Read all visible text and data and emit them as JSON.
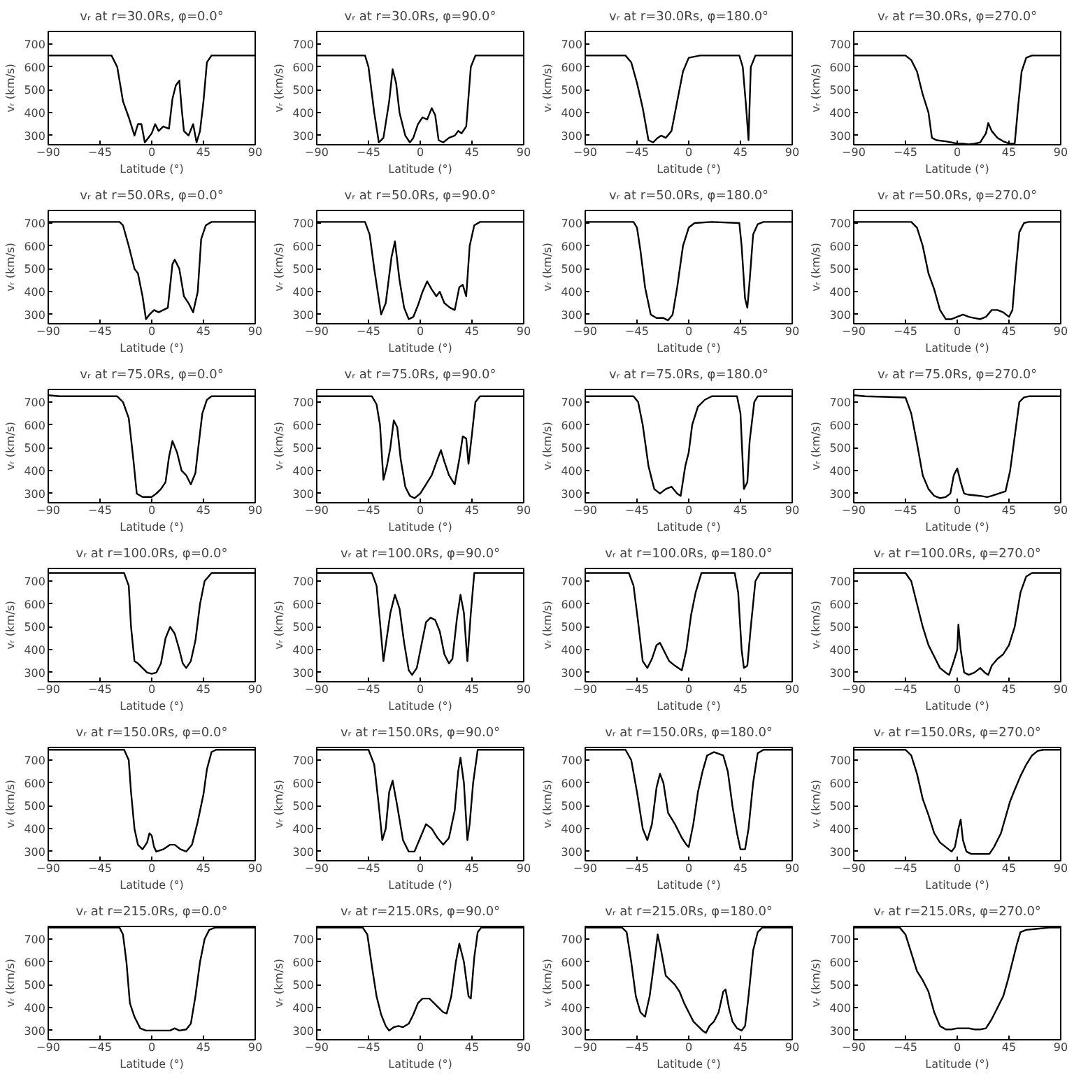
{
  "chart_data": [
    {
      "type": "line",
      "title": "vᵣ at r=30.0Rs, φ=0.0°",
      "xlabel": "Latitude (°)",
      "ylabel": "vᵣ (km/s)",
      "xlim": [
        -90,
        90
      ],
      "ylim": [
        260,
        755
      ],
      "xticks": [
        -90,
        -45,
        0,
        45,
        90
      ],
      "yticks": [
        300,
        400,
        500,
        600,
        700
      ],
      "color": "#000000",
      "x": [
        -90,
        -35,
        -30,
        -25,
        -20,
        -15,
        -12,
        -9,
        -6,
        -3,
        0,
        3,
        6,
        10,
        15,
        18,
        21,
        24,
        26,
        28,
        32,
        36,
        39,
        42,
        45,
        48,
        52,
        90
      ],
      "values": [
        650,
        650,
        600,
        450,
        380,
        300,
        350,
        350,
        270,
        290,
        310,
        350,
        320,
        340,
        330,
        460,
        520,
        540,
        420,
        320,
        300,
        350,
        270,
        320,
        450,
        620,
        650,
        650
      ]
    },
    {
      "type": "line",
      "title": "vᵣ at r=30.0Rs, φ=90.0°",
      "xlabel": "Latitude (°)",
      "ylabel": "vᵣ (km/s)",
      "xlim": [
        -90,
        90
      ],
      "ylim": [
        260,
        755
      ],
      "xticks": [
        -90,
        -45,
        0,
        45,
        90
      ],
      "yticks": [
        300,
        400,
        500,
        600,
        700
      ],
      "color": "#000000",
      "x": [
        -90,
        -48,
        -45,
        -40,
        -36,
        -32,
        -27,
        -24,
        -21,
        -18,
        -13,
        -9,
        -6,
        -2,
        2,
        6,
        10,
        13,
        16,
        20,
        25,
        30,
        33,
        36,
        40,
        44,
        48,
        90
      ],
      "values": [
        650,
        650,
        600,
        400,
        270,
        290,
        450,
        590,
        530,
        400,
        300,
        270,
        290,
        350,
        380,
        370,
        420,
        390,
        280,
        270,
        290,
        300,
        320,
        310,
        340,
        600,
        650,
        650
      ]
    },
    {
      "type": "line",
      "title": "vᵣ at r=30.0Rs, φ=180.0°",
      "xlabel": "Latitude (°)",
      "ylabel": "vᵣ (km/s)",
      "xlim": [
        -90,
        90
      ],
      "ylim": [
        260,
        755
      ],
      "xticks": [
        -90,
        -45,
        0,
        45,
        90
      ],
      "yticks": [
        300,
        400,
        500,
        600,
        700
      ],
      "color": "#000000",
      "x": [
        -90,
        -55,
        -50,
        -45,
        -40,
        -35,
        -31,
        -27,
        -24,
        -20,
        -15,
        -10,
        -5,
        0,
        10,
        44,
        47,
        50,
        52,
        54,
        58,
        90
      ],
      "values": [
        650,
        650,
        620,
        530,
        420,
        280,
        270,
        290,
        300,
        290,
        320,
        450,
        580,
        640,
        650,
        650,
        600,
        420,
        280,
        600,
        650,
        650
      ]
    },
    {
      "type": "line",
      "title": "vᵣ at r=30.0Rs, φ=270.0°",
      "xlabel": "Latitude (°)",
      "ylabel": "vᵣ (km/s)",
      "xlim": [
        -90,
        90
      ],
      "ylim": [
        260,
        755
      ],
      "xticks": [
        -90,
        -45,
        0,
        45,
        90
      ],
      "yticks": [
        300,
        400,
        500,
        600,
        700
      ],
      "color": "#000000",
      "x": [
        -90,
        -45,
        -40,
        -35,
        -30,
        -25,
        -22,
        -18,
        -10,
        -5,
        0,
        5,
        10,
        15,
        20,
        25,
        27,
        30,
        35,
        40,
        45,
        50,
        53,
        56,
        60,
        65,
        90
      ],
      "values": [
        650,
        650,
        630,
        580,
        480,
        400,
        290,
        280,
        275,
        270,
        265,
        265,
        262,
        265,
        270,
        310,
        355,
        320,
        290,
        275,
        265,
        265,
        430,
        580,
        640,
        650,
        650
      ]
    },
    {
      "type": "line",
      "title": "vᵣ at r=50.0Rs, φ=0.0°",
      "xlabel": "Latitude (°)",
      "ylabel": "vᵣ (km/s)",
      "xlim": [
        -90,
        90
      ],
      "ylim": [
        260,
        755
      ],
      "xticks": [
        -90,
        -45,
        0,
        45,
        90
      ],
      "yticks": [
        300,
        400,
        500,
        600,
        700
      ],
      "color": "#000000",
      "x": [
        -90,
        -28,
        -25,
        -20,
        -15,
        -12,
        -8,
        -5,
        -2,
        2,
        6,
        10,
        14,
        18,
        20,
        24,
        28,
        32,
        36,
        40,
        43,
        47,
        52,
        90
      ],
      "values": [
        705,
        705,
        690,
        600,
        500,
        480,
        380,
        280,
        300,
        320,
        310,
        320,
        330,
        520,
        540,
        500,
        380,
        350,
        310,
        400,
        630,
        690,
        705,
        705
      ]
    },
    {
      "type": "line",
      "title": "vᵣ at r=50.0Rs, φ=90.0°",
      "xlabel": "Latitude (°)",
      "ylabel": "vᵣ (km/s)",
      "xlim": [
        -90,
        90
      ],
      "ylim": [
        260,
        755
      ],
      "xticks": [
        -90,
        -45,
        0,
        45,
        90
      ],
      "yticks": [
        300,
        400,
        500,
        600,
        700
      ],
      "color": "#000000",
      "x": [
        -90,
        -48,
        -44,
        -40,
        -37,
        -34,
        -30,
        -25,
        -22,
        -18,
        -14,
        -10,
        -6,
        -2,
        2,
        6,
        10,
        14,
        17,
        21,
        26,
        30,
        34,
        37,
        40,
        43,
        47,
        52,
        90
      ],
      "values": [
        705,
        705,
        650,
        500,
        400,
        300,
        350,
        550,
        620,
        450,
        330,
        280,
        290,
        340,
        400,
        445,
        410,
        380,
        400,
        350,
        330,
        320,
        420,
        430,
        380,
        600,
        690,
        705,
        705
      ]
    },
    {
      "type": "line",
      "title": "vᵣ at r=50.0Rs, φ=180.0°",
      "xlabel": "Latitude (°)",
      "ylabel": "vᵣ (km/s)",
      "xlim": [
        -90,
        90
      ],
      "ylim": [
        260,
        755
      ],
      "xticks": [
        -90,
        -45,
        0,
        45,
        90
      ],
      "yticks": [
        300,
        400,
        500,
        600,
        700
      ],
      "color": "#000000",
      "x": [
        -90,
        -48,
        -45,
        -42,
        -38,
        -33,
        -28,
        -22,
        -18,
        -14,
        -10,
        -5,
        0,
        5,
        20,
        44,
        46,
        49,
        51,
        53,
        56,
        60,
        65,
        90
      ],
      "values": [
        705,
        705,
        680,
        580,
        420,
        300,
        285,
        285,
        275,
        300,
        420,
        600,
        680,
        700,
        705,
        700,
        600,
        370,
        330,
        450,
        650,
        695,
        705,
        705
      ]
    },
    {
      "type": "line",
      "title": "vᵣ at r=50.0Rs, φ=270.0°",
      "xlabel": "Latitude (°)",
      "ylabel": "vᵣ (km/s)",
      "xlim": [
        -90,
        90
      ],
      "ylim": [
        260,
        755
      ],
      "xticks": [
        -90,
        -45,
        0,
        45,
        90
      ],
      "yticks": [
        300,
        400,
        500,
        600,
        700
      ],
      "color": "#000000",
      "x": [
        -90,
        -40,
        -35,
        -30,
        -25,
        -20,
        -15,
        -10,
        -5,
        0,
        5,
        10,
        15,
        20,
        25,
        30,
        35,
        40,
        45,
        48,
        51,
        54,
        58,
        62,
        90
      ],
      "values": [
        705,
        705,
        680,
        600,
        480,
        410,
        320,
        280,
        280,
        290,
        300,
        290,
        285,
        280,
        290,
        320,
        320,
        310,
        290,
        320,
        500,
        660,
        700,
        705,
        705
      ]
    },
    {
      "type": "line",
      "title": "vᵣ at r=75.0Rs, φ=0.0°",
      "xlabel": "Latitude (°)",
      "ylabel": "vᵣ (km/s)",
      "xlim": [
        -90,
        90
      ],
      "ylim": [
        260,
        755
      ],
      "xticks": [
        -90,
        -45,
        0,
        45,
        90
      ],
      "yticks": [
        300,
        400,
        500,
        600,
        700
      ],
      "color": "#000000",
      "x": [
        -90,
        -80,
        -30,
        -25,
        -20,
        -16,
        -13,
        -8,
        0,
        4,
        8,
        12,
        15,
        18,
        22,
        26,
        30,
        34,
        38,
        40,
        44,
        48,
        52,
        90
      ],
      "values": [
        730,
        725,
        725,
        700,
        630,
        450,
        300,
        285,
        285,
        300,
        320,
        350,
        460,
        530,
        480,
        400,
        380,
        340,
        390,
        480,
        650,
        710,
        725,
        725
      ]
    },
    {
      "type": "line",
      "title": "vᵣ at r=75.0Rs, φ=90.0°",
      "xlabel": "Latitude (°)",
      "ylabel": "vᵣ (km/s)",
      "xlim": [
        -90,
        90
      ],
      "ylim": [
        260,
        755
      ],
      "xticks": [
        -90,
        -45,
        0,
        45,
        90
      ],
      "yticks": [
        300,
        400,
        500,
        600,
        700
      ],
      "color": "#000000",
      "x": [
        -90,
        -42,
        -38,
        -35,
        -32,
        -29,
        -26,
        -23,
        -20,
        -17,
        -13,
        -9,
        -5,
        0,
        5,
        10,
        15,
        18,
        21,
        25,
        30,
        34,
        37,
        40,
        42,
        45,
        48,
        52,
        90
      ],
      "values": [
        725,
        725,
        690,
        600,
        360,
        420,
        500,
        620,
        590,
        450,
        330,
        290,
        280,
        300,
        340,
        380,
        450,
        490,
        440,
        380,
        340,
        450,
        550,
        540,
        430,
        560,
        700,
        725,
        725
      ]
    },
    {
      "type": "line",
      "title": "vᵣ at r=75.0Rs, φ=180.0°",
      "xlabel": "Latitude (°)",
      "ylabel": "vᵣ (km/s)",
      "xlim": [
        -90,
        90
      ],
      "ylim": [
        260,
        755
      ],
      "xticks": [
        -90,
        -45,
        0,
        45,
        90
      ],
      "yticks": [
        300,
        400,
        500,
        600,
        700
      ],
      "color": "#000000",
      "x": [
        -90,
        -48,
        -44,
        -40,
        -35,
        -30,
        -25,
        -20,
        -15,
        -10,
        -7,
        -3,
        0,
        3,
        8,
        14,
        20,
        42,
        45,
        48,
        51,
        53,
        57,
        60,
        90
      ],
      "values": [
        725,
        725,
        700,
        600,
        420,
        320,
        300,
        320,
        330,
        300,
        290,
        420,
        480,
        600,
        680,
        710,
        725,
        725,
        650,
        320,
        350,
        530,
        700,
        725,
        725
      ]
    },
    {
      "type": "line",
      "title": "vᵣ at r=75.0Rs, φ=270.0°",
      "xlabel": "Latitude (°)",
      "ylabel": "vᵣ (km/s)",
      "xlim": [
        -90,
        90
      ],
      "ylim": [
        260,
        755
      ],
      "xticks": [
        -90,
        -45,
        0,
        45,
        90
      ],
      "yticks": [
        300,
        400,
        500,
        600,
        700
      ],
      "color": "#000000",
      "x": [
        -90,
        -80,
        -45,
        -40,
        -35,
        -30,
        -25,
        -20,
        -15,
        -10,
        -6,
        -3,
        0,
        3,
        6,
        10,
        20,
        26,
        30,
        36,
        42,
        46,
        50,
        54,
        58,
        62,
        90
      ],
      "values": [
        730,
        725,
        720,
        650,
        520,
        380,
        320,
        290,
        280,
        285,
        300,
        380,
        410,
        350,
        300,
        295,
        290,
        285,
        290,
        300,
        310,
        400,
        550,
        700,
        720,
        725,
        725
      ]
    },
    {
      "type": "line",
      "title": "vᵣ at r=100.0Rs, φ=0.0°",
      "xlabel": "Latitude (°)",
      "ylabel": "vᵣ (km/s)",
      "xlim": [
        -90,
        90
      ],
      "ylim": [
        260,
        755
      ],
      "xticks": [
        -90,
        -45,
        0,
        45,
        90
      ],
      "yticks": [
        300,
        400,
        500,
        600,
        700
      ],
      "color": "#000000",
      "x": [
        -90,
        -24,
        -20,
        -18,
        -15,
        -12,
        -8,
        -4,
        0,
        4,
        8,
        12,
        16,
        20,
        24,
        27,
        30,
        34,
        38,
        42,
        46,
        52,
        90
      ],
      "values": [
        735,
        735,
        680,
        500,
        350,
        340,
        320,
        300,
        295,
        300,
        340,
        450,
        500,
        470,
        400,
        340,
        320,
        350,
        440,
        600,
        700,
        735,
        735
      ]
    },
    {
      "type": "line",
      "title": "vᵣ at r=100.0Rs, φ=90.0°",
      "xlabel": "Latitude (°)",
      "ylabel": "vᵣ (km/s)",
      "xlim": [
        -90,
        90
      ],
      "ylim": [
        260,
        755
      ],
      "xticks": [
        -90,
        -45,
        0,
        45,
        90
      ],
      "yticks": [
        300,
        400,
        500,
        600,
        700
      ],
      "color": "#000000",
      "x": [
        -90,
        -42,
        -38,
        -35,
        -32,
        -30,
        -26,
        -22,
        -18,
        -14,
        -10,
        -7,
        -3,
        1,
        5,
        9,
        13,
        17,
        21,
        25,
        28,
        32,
        35,
        38,
        41,
        44,
        47,
        90
      ],
      "values": [
        735,
        735,
        680,
        520,
        350,
        420,
        560,
        640,
        580,
        430,
        310,
        290,
        320,
        420,
        520,
        540,
        530,
        480,
        380,
        340,
        360,
        540,
        640,
        560,
        350,
        560,
        735,
        735
      ]
    },
    {
      "type": "line",
      "title": "vᵣ at r=100.0Rs, φ=180.0°",
      "xlabel": "Latitude (°)",
      "ylabel": "vᵣ (km/s)",
      "xlim": [
        -90,
        90
      ],
      "ylim": [
        260,
        755
      ],
      "xticks": [
        -90,
        -45,
        0,
        45,
        90
      ],
      "yticks": [
        300,
        400,
        500,
        600,
        700
      ],
      "color": "#000000",
      "x": [
        -90,
        -52,
        -48,
        -44,
        -40,
        -36,
        -32,
        -28,
        -25,
        -22,
        -17,
        -12,
        -6,
        -2,
        2,
        6,
        11,
        40,
        43,
        46,
        48,
        51,
        54,
        58,
        62,
        90
      ],
      "values": [
        735,
        735,
        680,
        520,
        350,
        320,
        360,
        420,
        430,
        400,
        350,
        330,
        310,
        400,
        550,
        650,
        735,
        735,
        650,
        400,
        320,
        330,
        500,
        700,
        735,
        735
      ]
    },
    {
      "type": "line",
      "title": "vᵣ at r=100.0Rs, φ=270.0°",
      "xlabel": "Latitude (°)",
      "ylabel": "vᵣ (km/s)",
      "xlim": [
        -90,
        90
      ],
      "ylim": [
        260,
        755
      ],
      "xticks": [
        -90,
        -45,
        0,
        45,
        90
      ],
      "yticks": [
        300,
        400,
        500,
        600,
        700
      ],
      "color": "#000000",
      "x": [
        -90,
        -45,
        -40,
        -35,
        -30,
        -25,
        -20,
        -15,
        -10,
        -7,
        -3,
        0,
        1,
        3,
        6,
        10,
        15,
        20,
        24,
        27,
        30,
        35,
        40,
        45,
        50,
        55,
        60,
        65,
        90
      ],
      "values": [
        735,
        735,
        700,
        600,
        500,
        420,
        370,
        320,
        300,
        290,
        350,
        400,
        510,
        400,
        300,
        290,
        300,
        320,
        300,
        290,
        330,
        360,
        380,
        420,
        500,
        650,
        720,
        735,
        735
      ]
    },
    {
      "type": "line",
      "title": "vᵣ at r=150.0Rs, φ=0.0°",
      "xlabel": "Latitude (°)",
      "ylabel": "vᵣ (km/s)",
      "xlim": [
        -90,
        90
      ],
      "ylim": [
        260,
        755
      ],
      "xticks": [
        -90,
        -45,
        0,
        45,
        90
      ],
      "yticks": [
        300,
        400,
        500,
        600,
        700
      ],
      "color": "#000000",
      "x": [
        -90,
        -24,
        -20,
        -18,
        -15,
        -12,
        -8,
        -4,
        -2,
        0,
        2,
        4,
        10,
        16,
        20,
        25,
        30,
        35,
        40,
        45,
        48,
        52,
        56,
        90
      ],
      "values": [
        745,
        745,
        700,
        560,
        400,
        330,
        310,
        340,
        380,
        370,
        320,
        300,
        310,
        330,
        330,
        310,
        300,
        330,
        430,
        550,
        660,
        735,
        745,
        745
      ]
    },
    {
      "type": "line",
      "title": "vᵣ at r=150.0Rs, φ=90.0°",
      "xlabel": "Latitude (°)",
      "ylabel": "vᵣ (km/s)",
      "xlim": [
        -90,
        90
      ],
      "ylim": [
        260,
        755
      ],
      "xticks": [
        -90,
        -45,
        0,
        45,
        90
      ],
      "yticks": [
        300,
        400,
        500,
        600,
        700
      ],
      "color": "#000000",
      "x": [
        -90,
        -45,
        -40,
        -36,
        -33,
        -30,
        -27,
        -24,
        -20,
        -15,
        -10,
        -5,
        0,
        5,
        10,
        15,
        20,
        25,
        30,
        33,
        35,
        38,
        41,
        43,
        46,
        50,
        90
      ],
      "values": [
        745,
        745,
        680,
        500,
        350,
        400,
        560,
        610,
        500,
        350,
        300,
        300,
        360,
        420,
        400,
        360,
        330,
        360,
        480,
        650,
        710,
        600,
        350,
        420,
        600,
        745,
        745
      ]
    },
    {
      "type": "line",
      "title": "vᵣ at r=150.0Rs, φ=180.0°",
      "xlabel": "Latitude (°)",
      "ylabel": "vᵣ (km/s)",
      "xlim": [
        -90,
        90
      ],
      "ylim": [
        260,
        755
      ],
      "xticks": [
        -90,
        -45,
        0,
        45,
        90
      ],
      "yticks": [
        300,
        400,
        500,
        600,
        700
      ],
      "color": "#000000",
      "x": [
        -90,
        -55,
        -50,
        -45,
        -40,
        -36,
        -32,
        -28,
        -25,
        -22,
        -18,
        -12,
        -6,
        -2,
        0,
        4,
        8,
        12,
        16,
        22,
        30,
        34,
        38,
        42,
        45,
        49,
        52,
        56,
        60,
        65,
        90
      ],
      "values": [
        745,
        745,
        700,
        560,
        400,
        350,
        420,
        580,
        640,
        600,
        470,
        420,
        360,
        330,
        320,
        420,
        560,
        650,
        720,
        735,
        720,
        650,
        500,
        380,
        310,
        310,
        400,
        600,
        730,
        745,
        745
      ]
    },
    {
      "type": "line",
      "title": "vᵣ at r=150.0Rs, φ=270.0°",
      "xlabel": "Latitude (°)",
      "ylabel": "vᵣ (km/s)",
      "xlim": [
        -90,
        90
      ],
      "ylim": [
        260,
        755
      ],
      "xticks": [
        -90,
        -45,
        0,
        45,
        90
      ],
      "yticks": [
        300,
        400,
        500,
        600,
        700
      ],
      "color": "#000000",
      "x": [
        -90,
        -45,
        -40,
        -35,
        -30,
        -25,
        -20,
        -15,
        -10,
        -5,
        -2,
        1,
        3,
        5,
        8,
        12,
        20,
        28,
        32,
        38,
        42,
        46,
        50,
        55,
        60,
        65,
        70,
        75,
        90
      ],
      "values": [
        745,
        745,
        720,
        640,
        530,
        460,
        380,
        340,
        320,
        300,
        320,
        400,
        440,
        350,
        300,
        290,
        290,
        290,
        320,
        380,
        450,
        520,
        570,
        630,
        680,
        720,
        740,
        745,
        745
      ]
    },
    {
      "type": "line",
      "title": "vᵣ at r=215.0Rs, φ=0.0°",
      "xlabel": "Latitude (°)",
      "ylabel": "vᵣ (km/s)",
      "xlim": [
        -90,
        90
      ],
      "ylim": [
        260,
        755
      ],
      "xticks": [
        -90,
        -45,
        0,
        45,
        90
      ],
      "yticks": [
        300,
        400,
        500,
        600,
        700
      ],
      "color": "#000000",
      "x": [
        -90,
        -28,
        -25,
        -22,
        -19,
        -15,
        -10,
        -5,
        0,
        5,
        10,
        16,
        20,
        24,
        30,
        34,
        38,
        42,
        46,
        50,
        55,
        90
      ],
      "values": [
        750,
        750,
        720,
        600,
        420,
        360,
        310,
        300,
        300,
        300,
        300,
        300,
        310,
        300,
        305,
        330,
        450,
        600,
        700,
        740,
        750,
        750
      ]
    },
    {
      "type": "line",
      "title": "vᵣ at r=215.0Rs, φ=90.0°",
      "xlabel": "Latitude (°)",
      "ylabel": "vᵣ (km/s)",
      "xlim": [
        -90,
        90
      ],
      "ylim": [
        260,
        755
      ],
      "xticks": [
        -90,
        -45,
        0,
        45,
        90
      ],
      "yticks": [
        300,
        400,
        500,
        600,
        700
      ],
      "color": "#000000",
      "x": [
        -90,
        -50,
        -46,
        -42,
        -38,
        -34,
        -30,
        -27,
        -23,
        -19,
        -15,
        -10,
        -6,
        -2,
        2,
        8,
        12,
        16,
        20,
        23,
        27,
        31,
        34,
        38,
        42,
        44,
        47,
        50,
        53,
        90
      ],
      "values": [
        750,
        750,
        720,
        580,
        450,
        370,
        320,
        300,
        315,
        320,
        315,
        330,
        370,
        420,
        440,
        440,
        420,
        400,
        380,
        375,
        450,
        600,
        680,
        600,
        450,
        440,
        620,
        730,
        750,
        750
      ]
    },
    {
      "type": "line",
      "title": "vᵣ at r=215.0Rs, φ=180.0°",
      "xlabel": "Latitude (°)",
      "ylabel": "vᵣ (km/s)",
      "xlim": [
        -90,
        90
      ],
      "ylim": [
        260,
        755
      ],
      "xticks": [
        -90,
        -45,
        0,
        45,
        90
      ],
      "yticks": [
        300,
        400,
        500,
        600,
        700
      ],
      "color": "#000000",
      "x": [
        -90,
        -58,
        -54,
        -50,
        -46,
        -42,
        -38,
        -34,
        -30,
        -27,
        -24,
        -20,
        -16,
        -12,
        -8,
        -4,
        0,
        4,
        8,
        12,
        15,
        18,
        22,
        26,
        30,
        32,
        35,
        38,
        42,
        46,
        49,
        52,
        56,
        60,
        64,
        90
      ],
      "values": [
        750,
        750,
        730,
        600,
        450,
        380,
        360,
        450,
        600,
        720,
        650,
        540,
        520,
        500,
        470,
        420,
        380,
        340,
        320,
        300,
        290,
        320,
        340,
        380,
        470,
        480,
        400,
        340,
        310,
        300,
        320,
        450,
        650,
        730,
        750,
        750
      ]
    },
    {
      "type": "line",
      "title": "vᵣ at r=215.0Rs, φ=270.0°",
      "xlabel": "Latitude (°)",
      "ylabel": "vᵣ (km/s)",
      "xlim": [
        -90,
        90
      ],
      "ylim": [
        260,
        755
      ],
      "xticks": [
        -90,
        -45,
        0,
        45,
        90
      ],
      "yticks": [
        300,
        400,
        500,
        600,
        700
      ],
      "color": "#000000",
      "x": [
        -90,
        -50,
        -45,
        -40,
        -35,
        -30,
        -25,
        -20,
        -15,
        -10,
        -5,
        0,
        5,
        10,
        15,
        20,
        25,
        30,
        35,
        40,
        44,
        48,
        52,
        55,
        60,
        70,
        80,
        90
      ],
      "values": [
        750,
        750,
        720,
        640,
        560,
        520,
        470,
        380,
        320,
        305,
        305,
        310,
        310,
        310,
        305,
        305,
        310,
        350,
        400,
        450,
        520,
        600,
        680,
        730,
        740,
        745,
        750,
        750
      ]
    }
  ]
}
